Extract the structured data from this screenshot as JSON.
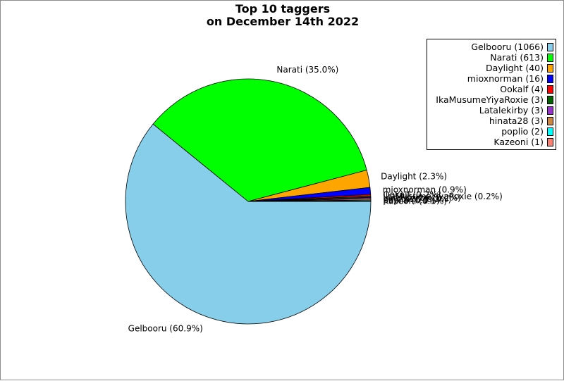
{
  "chart_data": {
    "type": "pie",
    "title_lines": [
      "Top 10 taggers",
      "on December 14th 2022"
    ],
    "slices": [
      {
        "name": "Gelbooru",
        "value": 1066,
        "pct_label": "Gelbooru (60.9%)",
        "legend": "Gelbooru (1066)",
        "color": "#87ceeb"
      },
      {
        "name": "Narati",
        "value": 613,
        "pct_label": "Narati (35.0%)",
        "legend": "Narati (613)",
        "color": "#00ff00"
      },
      {
        "name": "Daylight",
        "value": 40,
        "pct_label": "Daylight (2.3%)",
        "legend": "Daylight (40)",
        "color": "#ffa500"
      },
      {
        "name": "mioxnorman",
        "value": 16,
        "pct_label": "mioxnorman (0.9%)",
        "legend": "mioxnorman (16)",
        "color": "#0000ff"
      },
      {
        "name": "Ookalf",
        "value": 4,
        "pct_label": "Ookalf (0.2%)",
        "legend": "Ookalf (4)",
        "color": "#ff0000"
      },
      {
        "name": "IkaMusumeYiyaRoxie",
        "value": 3,
        "pct_label": "IkaMusumeYiyaRoxie (0.2%)",
        "legend": "IkaMusumeYiyaRoxie (3)",
        "color": "#006400"
      },
      {
        "name": "Latalekirby",
        "value": 3,
        "pct_label": "Latalekirby (0.2%)",
        "legend": "Latalekirby (3)",
        "color": "#9932cc"
      },
      {
        "name": "hinata28",
        "value": 3,
        "pct_label": "hinata28 (0.2%)",
        "legend": "hinata28 (3)",
        "color": "#cd853f"
      },
      {
        "name": "poplio",
        "value": 2,
        "pct_label": "poplio (0.1%)",
        "legend": "poplio (2)",
        "color": "#00ffff"
      },
      {
        "name": "Kazeoni",
        "value": 1,
        "pct_label": "Kazeoni (0.1%)",
        "legend": "Kazeoni (1)",
        "color": "#fa8072"
      }
    ],
    "start_angle_deg": 0,
    "direction": "clockwise-on-screen",
    "legend_position": "top-right"
  }
}
